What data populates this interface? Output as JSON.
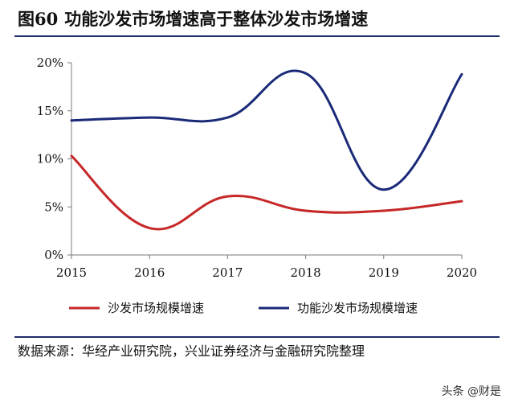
{
  "figure": {
    "label": "图60",
    "title": "功能沙发市场增速高于整体沙发市场增速"
  },
  "source": "数据来源：华经产业研究院，兴业证券经济与金融研究院整理",
  "watermark": "头条 @财是",
  "chart_data": {
    "type": "line",
    "x": [
      "2015",
      "2016",
      "2017",
      "2018",
      "2019",
      "2020"
    ],
    "yticks": [
      "0%",
      "5%",
      "10%",
      "15%",
      "20%"
    ],
    "ylim": [
      0,
      20
    ],
    "series": [
      {
        "name": "沙发市场规模增速",
        "color": "#c62828",
        "values": [
          10.3,
          2.8,
          6.1,
          4.6,
          4.6,
          5.6
        ]
      },
      {
        "name": "功能沙发市场规模增速",
        "color": "#1a2a78",
        "values": [
          14.0,
          14.3,
          14.3,
          18.9,
          6.8,
          18.8
        ]
      }
    ],
    "legend_position": "bottom",
    "grid": false
  }
}
